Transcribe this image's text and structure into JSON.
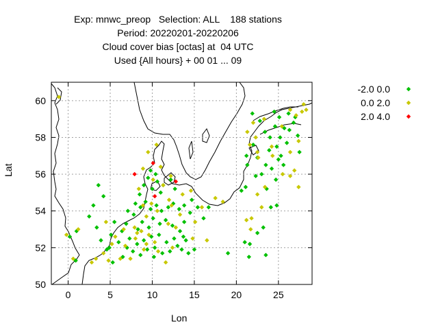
{
  "chart_data": {
    "type": "scatter",
    "title_lines": [
      "Exp: mnwc_preop   Selection: ALL    188 stations",
      "Period: 20220201-20220206",
      "Cloud cover bias [octas] at  04 UTC",
      "Used {All hours} + 00 01 ... 09"
    ],
    "xlabel": "Lon",
    "ylabel": "Lat",
    "xlim": [
      -2,
      29
    ],
    "ylim": [
      50,
      61
    ],
    "xticks": [
      0,
      5,
      10,
      15,
      20,
      25
    ],
    "yticks": [
      50,
      52,
      54,
      56,
      58,
      60
    ],
    "grid": true,
    "legend_position": "right",
    "series": [
      {
        "name": "-2.0 0.0",
        "color": "#00c000",
        "points": [
          [
            0.2,
            52.6
          ],
          [
            1.0,
            52.9
          ],
          [
            0.9,
            51.3
          ],
          [
            2.5,
            53.7
          ],
          [
            3.0,
            54.3
          ],
          [
            3.6,
            55.4
          ],
          [
            4.2,
            54.8
          ],
          [
            3.4,
            53.1
          ],
          [
            3.9,
            52.4
          ],
          [
            4.6,
            51.9
          ],
          [
            5.3,
            51.2
          ],
          [
            4.9,
            52.0
          ],
          [
            5.1,
            52.7
          ],
          [
            5.5,
            53.4
          ],
          [
            6.0,
            52.3
          ],
          [
            6.4,
            52.9
          ],
          [
            6.9,
            53.3
          ],
          [
            7.3,
            52.5
          ],
          [
            7.7,
            51.8
          ],
          [
            8.2,
            52.2
          ],
          [
            8.6,
            51.6
          ],
          [
            9.0,
            52.4
          ],
          [
            9.4,
            51.9
          ],
          [
            9.9,
            52.6
          ],
          [
            10.3,
            52.0
          ],
          [
            10.8,
            52.7
          ],
          [
            11.2,
            51.7
          ],
          [
            11.7,
            52.3
          ],
          [
            12.1,
            51.8
          ],
          [
            12.6,
            52.5
          ],
          [
            13.0,
            52.1
          ],
          [
            13.5,
            51.9
          ],
          [
            14.0,
            52.4
          ],
          [
            14.3,
            51.7
          ],
          [
            13.3,
            52.9
          ],
          [
            12.4,
            53.2
          ],
          [
            11.6,
            53.5
          ],
          [
            10.9,
            53.3
          ],
          [
            10.1,
            53.6
          ],
          [
            9.6,
            53.1
          ],
          [
            8.8,
            53.4
          ],
          [
            8.3,
            53.0
          ],
          [
            7.8,
            53.8
          ],
          [
            7.1,
            54.0
          ],
          [
            8.0,
            54.4
          ],
          [
            8.6,
            54.2
          ],
          [
            9.2,
            54.5
          ],
          [
            9.8,
            54.1
          ],
          [
            10.5,
            54.3
          ],
          [
            11.1,
            54.0
          ],
          [
            11.9,
            54.2
          ],
          [
            12.5,
            54.4
          ],
          [
            13.2,
            54.1
          ],
          [
            13.8,
            54.3
          ],
          [
            14.5,
            53.9
          ],
          [
            14.7,
            54.6
          ],
          [
            15.4,
            54.2
          ],
          [
            16.1,
            53.6
          ],
          [
            15.0,
            51.9
          ],
          [
            13.8,
            53.4
          ],
          [
            8.5,
            54.9
          ],
          [
            9.0,
            55.4
          ],
          [
            9.5,
            55.8
          ],
          [
            10.0,
            55.2
          ],
          [
            10.6,
            55.6
          ],
          [
            11.3,
            55.4
          ],
          [
            12.2,
            55.7
          ],
          [
            12.7,
            55.2
          ],
          [
            9.8,
            56.2
          ],
          [
            10.4,
            56.0
          ],
          [
            11.0,
            55.0
          ],
          [
            16.7,
            54.2
          ],
          [
            19.0,
            51.7
          ],
          [
            21.0,
            52.3
          ],
          [
            21.5,
            51.5
          ],
          [
            22.5,
            52.8
          ],
          [
            23.5,
            51.6
          ],
          [
            23.2,
            53.1
          ],
          [
            24.1,
            54.2
          ],
          [
            24.8,
            54.3
          ],
          [
            21.1,
            55.3
          ],
          [
            21.3,
            56.5
          ],
          [
            22.0,
            57.6
          ],
          [
            22.5,
            56.9
          ],
          [
            23.0,
            56.0
          ],
          [
            23.6,
            55.2
          ],
          [
            24.2,
            56.3
          ],
          [
            24.7,
            55.7
          ],
          [
            25.3,
            57.0
          ],
          [
            25.6,
            56.5
          ],
          [
            23.4,
            58.3
          ],
          [
            24.0,
            58.0
          ],
          [
            24.6,
            58.6
          ],
          [
            25.1,
            59.1
          ],
          [
            25.7,
            58.5
          ],
          [
            26.2,
            59.3
          ],
          [
            26.8,
            58.8
          ],
          [
            27.3,
            58.1
          ],
          [
            26.0,
            57.7
          ],
          [
            24.8,
            57.5
          ],
          [
            23.9,
            57.3
          ],
          [
            22.8,
            58.9
          ],
          [
            24.5,
            59.4
          ],
          [
            21.9,
            59.3
          ],
          [
            27.0,
            59.1
          ],
          [
            26.3,
            58.4
          ],
          [
            27.5,
            57.2
          ],
          [
            25.2,
            58.0
          ],
          [
            21.2,
            57.0
          ],
          [
            22.3,
            55.9
          ],
          [
            23.5,
            56.5
          ],
          [
            25.0,
            56.8
          ],
          [
            20.6,
            55.1
          ],
          [
            21.6,
            52.2
          ],
          [
            10.2,
            51.5
          ],
          [
            13.7,
            52.6
          ],
          [
            6.5,
            51.5
          ],
          [
            7.0,
            52.0
          ]
        ]
      },
      {
        "name": "0.0 2.0",
        "color": "#c8c800",
        "points": [
          [
            -1.1,
            60.2
          ],
          [
            -0.2,
            52.7
          ],
          [
            0.6,
            51.4
          ],
          [
            1.2,
            53.0
          ],
          [
            2.8,
            51.2
          ],
          [
            3.3,
            51.4
          ],
          [
            4.2,
            51.7
          ],
          [
            4.5,
            53.4
          ],
          [
            5.6,
            52.6
          ],
          [
            6.2,
            51.4
          ],
          [
            6.8,
            52.1
          ],
          [
            7.4,
            51.4
          ],
          [
            8.0,
            52.5
          ],
          [
            8.7,
            52.9
          ],
          [
            9.3,
            52.2
          ],
          [
            9.6,
            52.7
          ],
          [
            10.7,
            51.8
          ],
          [
            11.6,
            51.2
          ],
          [
            10.3,
            52.3
          ],
          [
            11.9,
            53.3
          ],
          [
            12.8,
            53.1
          ],
          [
            13.3,
            53.8
          ],
          [
            13.6,
            54.9
          ],
          [
            12.0,
            54.6
          ],
          [
            10.6,
            54.0
          ],
          [
            9.9,
            54.4
          ],
          [
            9.3,
            53.7
          ],
          [
            8.9,
            54.3
          ],
          [
            8.4,
            55.2
          ],
          [
            8.9,
            56.3
          ],
          [
            9.5,
            57.2
          ],
          [
            10.5,
            57.6
          ],
          [
            11.3,
            55.4
          ],
          [
            12.2,
            55.9
          ],
          [
            14.6,
            55.1
          ],
          [
            15.9,
            54.2
          ],
          [
            17.5,
            54.7
          ],
          [
            18.4,
            54.5
          ],
          [
            16.5,
            52.4
          ],
          [
            15.1,
            53.4
          ],
          [
            21.2,
            53.5
          ],
          [
            23.0,
            54.2
          ],
          [
            22.5,
            54.9
          ],
          [
            21.7,
            53.0
          ],
          [
            22.6,
            56.9
          ],
          [
            23.4,
            55.3
          ],
          [
            24.2,
            57.5
          ],
          [
            25.5,
            56.0
          ],
          [
            26.4,
            55.9
          ],
          [
            26.9,
            56.2
          ],
          [
            27.4,
            57.8
          ],
          [
            25.4,
            58.6
          ],
          [
            26.4,
            59.5
          ],
          [
            27.1,
            59.2
          ],
          [
            27.8,
            59.4
          ],
          [
            28.3,
            59.5
          ],
          [
            22.5,
            57.2
          ],
          [
            22.0,
            58.8
          ],
          [
            21.3,
            58.3
          ],
          [
            21.6,
            57.6
          ],
          [
            22.3,
            58.0
          ],
          [
            23.3,
            59.0
          ],
          [
            26.4,
            57.2
          ],
          [
            27.4,
            55.3
          ],
          [
            4.8,
            51.3
          ],
          [
            5.2,
            52.2
          ],
          [
            6.6,
            53.0
          ],
          [
            7.9,
            53.1
          ],
          [
            8.2,
            52.8
          ],
          [
            9.0,
            51.9
          ],
          [
            12.4,
            52.0
          ],
          [
            14.8,
            52.5
          ],
          [
            10.1,
            55.7
          ],
          [
            11.0,
            56.4
          ],
          [
            12.3,
            54.3
          ],
          [
            21.8,
            53.6
          ],
          [
            28.0,
            59.8
          ],
          [
            24.3,
            57.0
          ]
        ]
      },
      {
        "name": "2.0 4.0",
        "color": "#ff0000",
        "points": [
          [
            7.9,
            56.0
          ],
          [
            10.1,
            56.6
          ],
          [
            12.8,
            55.6
          ],
          [
            10.3,
            54.8
          ]
        ]
      }
    ]
  },
  "legend_marker_symbol": "diamond"
}
